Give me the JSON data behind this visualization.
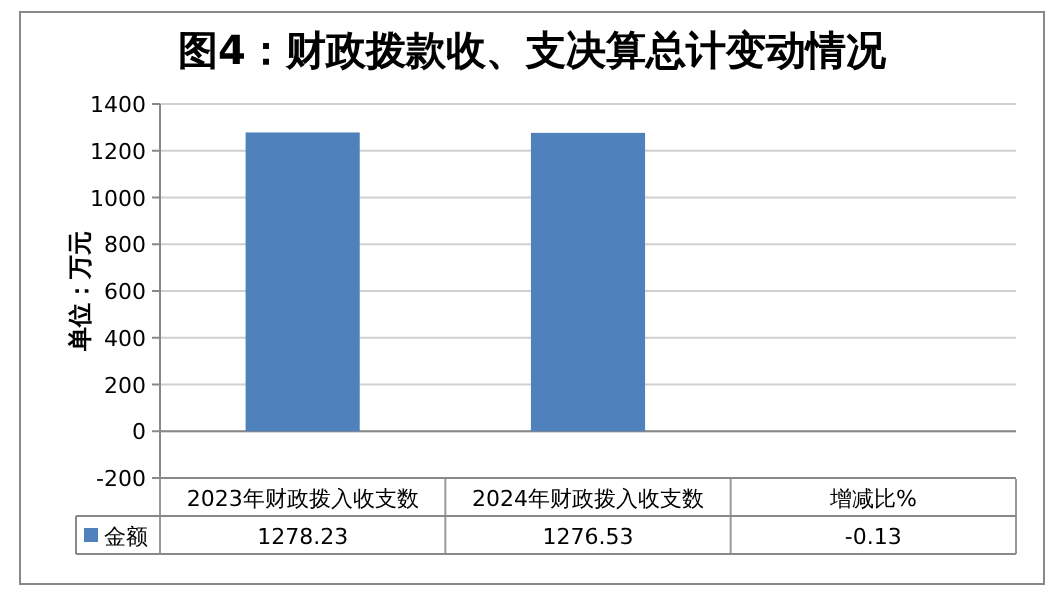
{
  "chart_data": {
    "type": "bar",
    "title": "图4：财政拨款收、支决算总计变动情况",
    "ylabel": "单位：万元",
    "categories": [
      "2023年财政拨入收支数",
      "2024年财政拨入收支数",
      "增减比%"
    ],
    "series": [
      {
        "name": "金额",
        "color": "#4f81bd",
        "values": [
          1278.23,
          1276.53,
          -0.13
        ]
      }
    ],
    "ylim": [
      -200,
      1400
    ],
    "yticks": [
      -200,
      0,
      200,
      400,
      600,
      800,
      1000,
      1200,
      1400
    ],
    "grid": "y",
    "legend": "bottom",
    "data_labels": true
  }
}
